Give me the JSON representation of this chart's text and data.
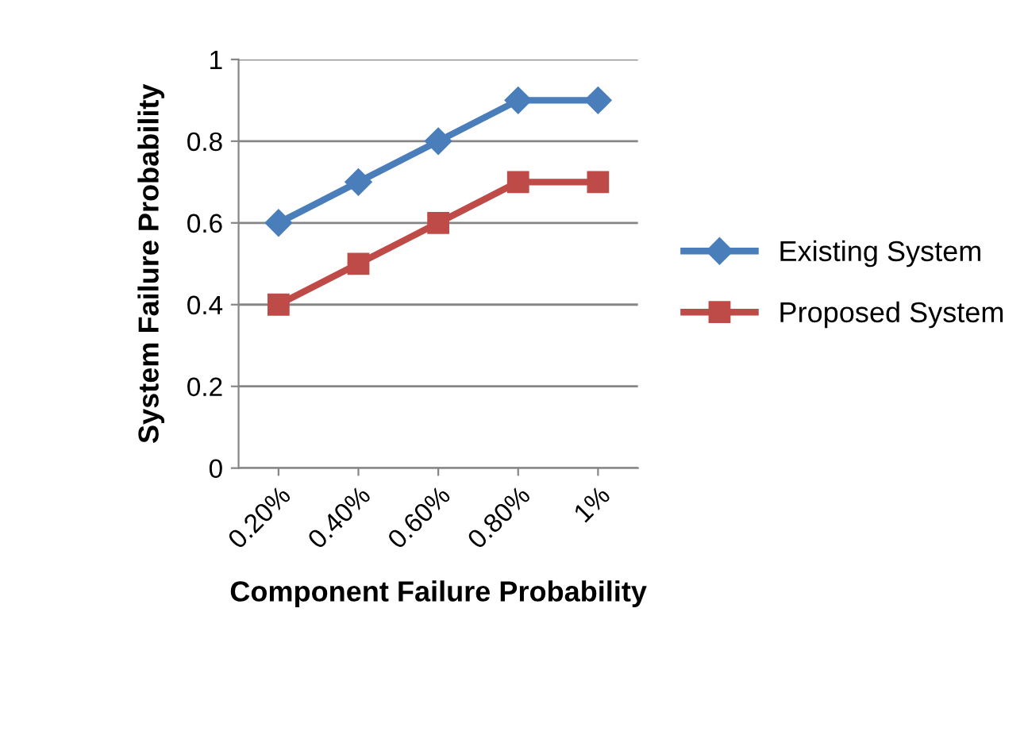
{
  "chart_data": {
    "type": "line",
    "xlabel": "Component Failure Probability",
    "ylabel": "System Failure Probability",
    "categories": [
      "0.20%",
      "0.40%",
      "0.60%",
      "0.80%",
      "1%"
    ],
    "series": [
      {
        "name": "Existing System",
        "color": "#4a7ebb",
        "marker": "diamond",
        "values": [
          0.6,
          0.7,
          0.8,
          0.9,
          0.9
        ]
      },
      {
        "name": "Proposed System",
        "color": "#be4b48",
        "marker": "square",
        "values": [
          0.4,
          0.5,
          0.6,
          0.7,
          0.7
        ]
      }
    ],
    "ylim": [
      0,
      1
    ],
    "yticks": [
      0,
      0.2,
      0.4,
      0.6,
      0.8,
      1
    ],
    "grid": "y",
    "legend": "right",
    "line_style": "solid"
  }
}
